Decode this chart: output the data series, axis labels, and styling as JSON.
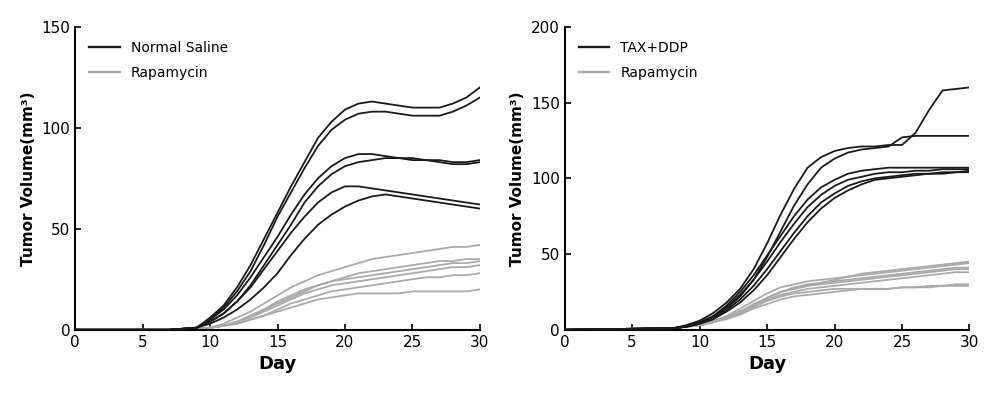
{
  "left_plot": {
    "xlabel": "Day",
    "ylabel": "Tumor Volume(mm³)",
    "xlim": [
      0,
      30
    ],
    "ylim": [
      0,
      150
    ],
    "yticks": [
      0,
      50,
      100,
      150
    ],
    "xticks": [
      0,
      5,
      10,
      15,
      20,
      25,
      30
    ],
    "legend_labels": [
      "Normal Saline",
      "Rapamycin"
    ],
    "dark_lines": [
      {
        "x": [
          0,
          7,
          8,
          9,
          10,
          11,
          12,
          13,
          14,
          15,
          16,
          17,
          18,
          19,
          20,
          21,
          22,
          23,
          24,
          25,
          26,
          27,
          28,
          29,
          30
        ],
        "y": [
          0,
          0,
          0.5,
          1,
          3,
          6,
          10,
          15,
          21,
          28,
          37,
          45,
          52,
          57,
          61,
          64,
          66,
          67,
          66,
          65,
          64,
          63,
          62,
          61,
          60
        ]
      },
      {
        "x": [
          0,
          7,
          8,
          9,
          10,
          11,
          12,
          13,
          14,
          15,
          16,
          17,
          18,
          19,
          20,
          21,
          22,
          23,
          24,
          25,
          26,
          27,
          28,
          29,
          30
        ],
        "y": [
          0,
          0,
          0.5,
          1,
          4,
          8,
          14,
          21,
          30,
          39,
          48,
          56,
          63,
          68,
          71,
          71,
          70,
          69,
          68,
          67,
          66,
          65,
          64,
          63,
          62
        ]
      },
      {
        "x": [
          0,
          7,
          8,
          9,
          10,
          11,
          12,
          13,
          14,
          15,
          16,
          17,
          18,
          19,
          20,
          21,
          22,
          23,
          24,
          25,
          26,
          27,
          28,
          29,
          30
        ],
        "y": [
          0,
          0,
          0.5,
          1,
          4,
          8,
          14,
          22,
          32,
          42,
          52,
          63,
          71,
          77,
          81,
          83,
          84,
          85,
          85,
          85,
          84,
          84,
          83,
          83,
          84
        ]
      },
      {
        "x": [
          0,
          7,
          8,
          9,
          10,
          11,
          12,
          13,
          14,
          15,
          16,
          17,
          18,
          19,
          20,
          21,
          22,
          23,
          24,
          25,
          26,
          27,
          28,
          29,
          30
        ],
        "y": [
          0,
          0,
          0.5,
          1,
          5,
          10,
          17,
          26,
          36,
          46,
          57,
          67,
          75,
          81,
          85,
          87,
          87,
          86,
          85,
          84,
          84,
          83,
          82,
          82,
          83
        ]
      },
      {
        "x": [
          0,
          7,
          8,
          9,
          10,
          11,
          12,
          13,
          14,
          15,
          16,
          17,
          18,
          19,
          20,
          21,
          22,
          23,
          24,
          25,
          26,
          27,
          28,
          29,
          30
        ],
        "y": [
          0,
          0,
          0.5,
          1,
          5,
          11,
          19,
          29,
          42,
          56,
          68,
          80,
          91,
          99,
          104,
          107,
          108,
          108,
          107,
          106,
          106,
          106,
          108,
          111,
          115
        ]
      },
      {
        "x": [
          0,
          7,
          8,
          9,
          10,
          11,
          12,
          13,
          14,
          15,
          16,
          17,
          18,
          19,
          20,
          21,
          22,
          23,
          24,
          25,
          26,
          27,
          28,
          29,
          30
        ],
        "y": [
          0,
          0,
          0.5,
          1,
          6,
          12,
          21,
          32,
          45,
          58,
          71,
          83,
          95,
          103,
          109,
          112,
          113,
          112,
          111,
          110,
          110,
          110,
          112,
          115,
          120
        ]
      }
    ],
    "light_lines": [
      {
        "x": [
          0,
          7,
          8,
          9,
          10,
          11,
          12,
          13,
          14,
          15,
          16,
          17,
          18,
          19,
          20,
          21,
          22,
          23,
          24,
          25,
          26,
          27,
          28,
          29,
          30
        ],
        "y": [
          0,
          0,
          0.3,
          0.5,
          1,
          2,
          3,
          5,
          7,
          10,
          13,
          15,
          17,
          19,
          20,
          21,
          22,
          23,
          24,
          25,
          26,
          26,
          27,
          27,
          28
        ]
      },
      {
        "x": [
          0,
          7,
          8,
          9,
          10,
          11,
          12,
          13,
          14,
          15,
          16,
          17,
          18,
          19,
          20,
          21,
          22,
          23,
          24,
          25,
          26,
          27,
          28,
          29,
          30
        ],
        "y": [
          0,
          0,
          0.3,
          0.5,
          1,
          2,
          4,
          6,
          9,
          12,
          15,
          18,
          20,
          22,
          23,
          24,
          25,
          26,
          27,
          28,
          29,
          30,
          31,
          31,
          32
        ]
      },
      {
        "x": [
          0,
          7,
          8,
          9,
          10,
          11,
          12,
          13,
          14,
          15,
          16,
          17,
          18,
          19,
          20,
          21,
          22,
          23,
          24,
          25,
          26,
          27,
          28,
          29,
          30
        ],
        "y": [
          0,
          0,
          0.3,
          0.5,
          1,
          2,
          4,
          7,
          10,
          14,
          17,
          20,
          22,
          24,
          26,
          28,
          29,
          30,
          31,
          32,
          33,
          34,
          34,
          35,
          35
        ]
      },
      {
        "x": [
          0,
          7,
          8,
          9,
          10,
          11,
          12,
          13,
          14,
          15,
          16,
          17,
          18,
          19,
          20,
          21,
          22,
          23,
          24,
          25,
          26,
          27,
          28,
          29,
          30
        ],
        "y": [
          0,
          0,
          0.3,
          0.5,
          1,
          2,
          4,
          7,
          10,
          13,
          16,
          19,
          22,
          24,
          25,
          26,
          27,
          28,
          29,
          30,
          31,
          32,
          33,
          33,
          34
        ]
      },
      {
        "x": [
          0,
          7,
          8,
          9,
          10,
          11,
          12,
          13,
          14,
          15,
          16,
          17,
          18,
          19,
          20,
          21,
          22,
          23,
          24,
          25,
          26,
          27,
          28,
          29,
          30
        ],
        "y": [
          0,
          0,
          0.3,
          0.5,
          1,
          3,
          6,
          9,
          13,
          17,
          21,
          24,
          27,
          29,
          31,
          33,
          35,
          36,
          37,
          38,
          39,
          40,
          41,
          41,
          42
        ]
      },
      {
        "x": [
          0,
          7,
          8,
          9,
          10,
          11,
          12,
          13,
          14,
          15,
          16,
          17,
          18,
          19,
          20,
          21,
          22,
          23,
          24,
          25,
          26,
          27,
          28,
          29,
          30
        ],
        "y": [
          0,
          0,
          0.3,
          0.5,
          1,
          2,
          3,
          5,
          7,
          9,
          11,
          13,
          15,
          16,
          17,
          18,
          18,
          18,
          18,
          19,
          19,
          19,
          19,
          19,
          20
        ]
      }
    ]
  },
  "right_plot": {
    "xlabel": "Day",
    "ylabel": "Tumor Volume(mm³)",
    "xlim": [
      0,
      30
    ],
    "ylim": [
      0,
      200
    ],
    "yticks": [
      0,
      50,
      100,
      150,
      200
    ],
    "xticks": [
      0,
      5,
      10,
      15,
      20,
      25,
      30
    ],
    "legend_labels": [
      "TAX+DDP",
      "Rapamycin"
    ],
    "dark_lines": [
      {
        "x": [
          0,
          8,
          9,
          10,
          11,
          12,
          13,
          14,
          15,
          16,
          17,
          18,
          19,
          20,
          21,
          22,
          23,
          24,
          25,
          26,
          27,
          28,
          29,
          30
        ],
        "y": [
          0,
          1,
          2,
          4,
          7,
          12,
          18,
          26,
          36,
          48,
          60,
          71,
          80,
          87,
          92,
          96,
          99,
          100,
          101,
          102,
          103,
          103,
          104,
          104
        ]
      },
      {
        "x": [
          0,
          8,
          9,
          10,
          11,
          12,
          13,
          14,
          15,
          16,
          17,
          18,
          19,
          20,
          21,
          22,
          23,
          24,
          25,
          26,
          27,
          28,
          29,
          30
        ],
        "y": [
          0,
          1,
          2,
          4,
          7,
          13,
          20,
          29,
          40,
          52,
          64,
          75,
          84,
          90,
          95,
          98,
          100,
          101,
          102,
          103,
          103,
          104,
          104,
          105
        ]
      },
      {
        "x": [
          0,
          8,
          9,
          10,
          11,
          12,
          13,
          14,
          15,
          16,
          17,
          18,
          19,
          20,
          21,
          22,
          23,
          24,
          25,
          26,
          27,
          28,
          29,
          30
        ],
        "y": [
          0,
          1,
          2,
          5,
          9,
          15,
          23,
          33,
          45,
          58,
          70,
          81,
          89,
          95,
          99,
          101,
          103,
          104,
          104,
          105,
          105,
          106,
          106,
          106
        ]
      },
      {
        "x": [
          0,
          8,
          9,
          10,
          11,
          12,
          13,
          14,
          15,
          16,
          17,
          18,
          19,
          20,
          21,
          22,
          23,
          24,
          25,
          26,
          27,
          28,
          29,
          30
        ],
        "y": [
          0,
          1,
          2,
          5,
          9,
          16,
          25,
          36,
          49,
          62,
          75,
          86,
          94,
          99,
          103,
          105,
          106,
          107,
          107,
          107,
          107,
          107,
          107,
          107
        ]
      },
      {
        "x": [
          0,
          8,
          9,
          10,
          11,
          12,
          13,
          14,
          15,
          16,
          17,
          18,
          19,
          20,
          21,
          22,
          23,
          24,
          25,
          26,
          27,
          28,
          29,
          30
        ],
        "y": [
          0,
          1,
          2,
          4,
          8,
          14,
          22,
          33,
          48,
          65,
          82,
          96,
          107,
          113,
          117,
          119,
          120,
          121,
          127,
          128,
          128,
          128,
          128,
          128
        ]
      },
      {
        "x": [
          0,
          8,
          9,
          10,
          11,
          12,
          13,
          14,
          15,
          16,
          17,
          18,
          19,
          20,
          21,
          22,
          23,
          24,
          25,
          26,
          27,
          28,
          29,
          30
        ],
        "y": [
          0,
          1,
          3,
          6,
          11,
          18,
          27,
          40,
          57,
          76,
          93,
          107,
          114,
          118,
          120,
          121,
          121,
          122,
          122,
          130,
          145,
          158,
          159,
          160
        ]
      }
    ],
    "light_lines": [
      {
        "x": [
          0,
          8,
          9,
          10,
          11,
          12,
          13,
          14,
          15,
          16,
          17,
          18,
          19,
          20,
          21,
          22,
          23,
          24,
          25,
          26,
          27,
          28,
          29,
          30
        ],
        "y": [
          0,
          1,
          2,
          3,
          5,
          8,
          12,
          16,
          20,
          23,
          25,
          27,
          28,
          29,
          30,
          31,
          32,
          33,
          34,
          35,
          36,
          37,
          38,
          38
        ]
      },
      {
        "x": [
          0,
          8,
          9,
          10,
          11,
          12,
          13,
          14,
          15,
          16,
          17,
          18,
          19,
          20,
          21,
          22,
          23,
          24,
          25,
          26,
          27,
          28,
          29,
          30
        ],
        "y": [
          0,
          1,
          2,
          3,
          5,
          8,
          12,
          17,
          21,
          25,
          27,
          29,
          30,
          31,
          32,
          33,
          34,
          35,
          36,
          37,
          38,
          39,
          40,
          40
        ]
      },
      {
        "x": [
          0,
          8,
          9,
          10,
          11,
          12,
          13,
          14,
          15,
          16,
          17,
          18,
          19,
          20,
          21,
          22,
          23,
          24,
          25,
          26,
          27,
          28,
          29,
          30
        ],
        "y": [
          0,
          1,
          2,
          4,
          6,
          9,
          14,
          19,
          24,
          28,
          30,
          32,
          33,
          34,
          35,
          36,
          37,
          38,
          39,
          40,
          41,
          42,
          43,
          44
        ]
      },
      {
        "x": [
          0,
          8,
          9,
          10,
          11,
          12,
          13,
          14,
          15,
          16,
          17,
          18,
          19,
          20,
          21,
          22,
          23,
          24,
          25,
          26,
          27,
          28,
          29,
          30
        ],
        "y": [
          0,
          1,
          2,
          3,
          5,
          8,
          12,
          16,
          21,
          25,
          28,
          30,
          31,
          32,
          33,
          34,
          35,
          36,
          37,
          38,
          39,
          40,
          41,
          41
        ]
      },
      {
        "x": [
          0,
          8,
          9,
          10,
          11,
          12,
          13,
          14,
          15,
          16,
          17,
          18,
          19,
          20,
          21,
          22,
          23,
          24,
          25,
          26,
          27,
          28,
          29,
          30
        ],
        "y": [
          0,
          1,
          2,
          3,
          5,
          8,
          11,
          15,
          19,
          22,
          24,
          25,
          26,
          27,
          27,
          27,
          27,
          27,
          28,
          28,
          28,
          29,
          29,
          29
        ]
      },
      {
        "x": [
          0,
          8,
          9,
          10,
          11,
          12,
          13,
          14,
          15,
          16,
          17,
          18,
          19,
          20,
          21,
          22,
          23,
          24,
          25,
          26,
          27,
          28,
          29,
          30
        ],
        "y": [
          0,
          1,
          2,
          3,
          5,
          8,
          12,
          16,
          21,
          25,
          27,
          29,
          31,
          33,
          35,
          37,
          38,
          39,
          40,
          41,
          42,
          43,
          44,
          45
        ]
      },
      {
        "x": [
          0,
          8,
          9,
          10,
          11,
          12,
          13,
          14,
          15,
          16,
          17,
          18,
          19,
          20,
          21,
          22,
          23,
          24,
          25,
          26,
          27,
          28,
          29,
          30
        ],
        "y": [
          0,
          1,
          2,
          3,
          5,
          7,
          10,
          14,
          17,
          20,
          22,
          23,
          24,
          25,
          26,
          27,
          27,
          27,
          28,
          28,
          29,
          29,
          30,
          30
        ]
      }
    ]
  },
  "dark_color": "#1a1a1a",
  "light_color": "#aaaaaa",
  "linewidth": 1.3
}
